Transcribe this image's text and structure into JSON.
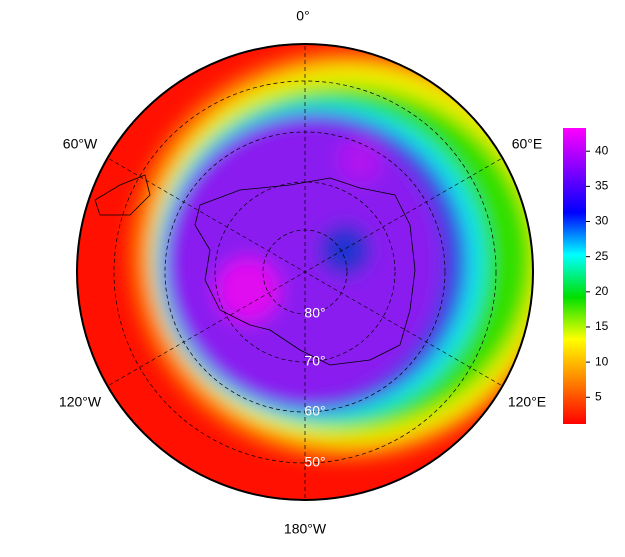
{
  "map": {
    "longitude_labels": [
      "0°",
      "60°E",
      "120°E",
      "180°W",
      "120°W",
      "60°W"
    ],
    "latitude_labels": [
      "80°",
      "70°",
      "60°",
      "50°"
    ],
    "colorbar": {
      "range": [
        1.2,
        43.3
      ],
      "ticks": [
        5,
        10,
        15,
        20,
        25,
        30,
        35,
        40
      ],
      "colors": [
        "#ff0000",
        "#ff8000",
        "#ffff00",
        "#00e000",
        "#00ffff",
        "#0000ff",
        "#8000ff",
        "#ff00ff"
      ]
    }
  }
}
